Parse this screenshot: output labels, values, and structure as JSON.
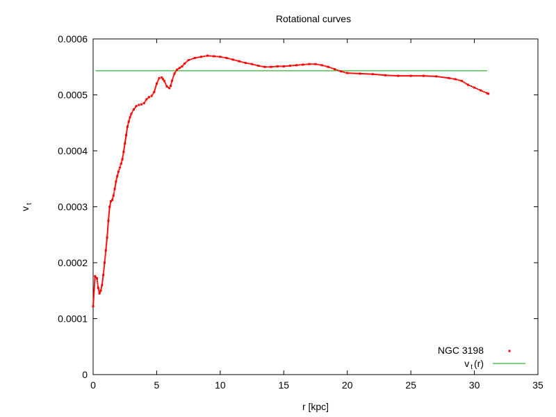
{
  "chart_data": {
    "type": "scatter",
    "title": "Rotational curves",
    "xlabel": "r [kpc]",
    "ylabel": {
      "main": "v",
      "sub": "t"
    },
    "xlim": [
      0,
      35
    ],
    "ylim": [
      0,
      0.0006
    ],
    "x_ticks": [
      0,
      5,
      10,
      15,
      20,
      25,
      30,
      35
    ],
    "x_tick_labels": [
      "0",
      "5",
      "10",
      "15",
      "20",
      "25",
      "30",
      "35"
    ],
    "y_ticks": [
      0,
      0.0001,
      0.0002,
      0.0003,
      0.0004,
      0.0005,
      0.0006
    ],
    "y_tick_labels": [
      "0",
      "0.0001",
      "0.0002",
      "0.0003",
      "0.0004",
      "0.0005",
      "0.0006"
    ],
    "grid": false,
    "legend_position": "bottom-right",
    "series": [
      {
        "name": "NGC 3198",
        "style": "points",
        "color": "#ff0000",
        "x": [
          0,
          0.15,
          0.3,
          0.4,
          0.5,
          0.6,
          0.7,
          0.8,
          0.9,
          1.0,
          1.1,
          1.2,
          1.3,
          1.4,
          1.5,
          1.6,
          1.7,
          1.8,
          1.9,
          2.0,
          2.1,
          2.2,
          2.3,
          2.4,
          2.5,
          2.6,
          2.7,
          2.8,
          2.9,
          3.0,
          3.2,
          3.4,
          3.6,
          3.8,
          4.0,
          4.2,
          4.4,
          4.6,
          4.8,
          5.0,
          5.2,
          5.4,
          5.5,
          5.6,
          5.8,
          6.0,
          6.1,
          6.2,
          6.4,
          6.6,
          6.8,
          7.0,
          7.2,
          7.5,
          8.0,
          8.5,
          9.0,
          9.5,
          10.0,
          10.5,
          11.0,
          11.5,
          12.0,
          12.5,
          13.0,
          13.5,
          14.0,
          14.5,
          15.0,
          15.5,
          16.0,
          16.5,
          17.0,
          17.5,
          18.0,
          18.5,
          19.0,
          19.5,
          20.0,
          21.0,
          22.0,
          23.0,
          24.0,
          25.0,
          26.0,
          27.0,
          28.0,
          28.5,
          29.0,
          29.5,
          30.0,
          30.5,
          31.0,
          31.1
        ],
        "y": [
          0.000122,
          0.000176,
          0.000172,
          0.000155,
          0.000145,
          0.00015,
          0.00016,
          0.000178,
          0.0002,
          0.000222,
          0.000245,
          0.000275,
          0.0003,
          0.00031,
          0.000312,
          0.00032,
          0.000332,
          0.000345,
          0.000355,
          0.000363,
          0.00037,
          0.000377,
          0.000385,
          0.000398,
          0.000413,
          0.000428,
          0.000443,
          0.000452,
          0.00046,
          0.000466,
          0.000474,
          0.00048,
          0.000482,
          0.000483,
          0.000485,
          0.000492,
          0.000496,
          0.000498,
          0.000505,
          0.00052,
          0.00053,
          0.000531,
          0.000528,
          0.000525,
          0.000515,
          0.000512,
          0.000516,
          0.000525,
          0.000538,
          0.000545,
          0.000548,
          0.000551,
          0.000556,
          0.000562,
          0.000566,
          0.000568,
          0.00057,
          0.000569,
          0.000568,
          0.000566,
          0.000563,
          0.00056,
          0.000557,
          0.000555,
          0.000552,
          0.00055,
          0.00055,
          0.000551,
          0.000551,
          0.000552,
          0.000553,
          0.000554,
          0.000555,
          0.000555,
          0.000553,
          0.00055,
          0.000546,
          0.000542,
          0.000539,
          0.000538,
          0.000537,
          0.000535,
          0.000534,
          0.000534,
          0.000534,
          0.000533,
          0.00053,
          0.000528,
          0.000525,
          0.000518,
          0.000513,
          0.000508,
          0.000503,
          0.000502
        ]
      },
      {
        "name": {
          "main": "v",
          "sub": "t",
          "suffix": "(r)"
        },
        "style": "line",
        "color": "#00a000",
        "x": [
          0.2,
          31.0
        ],
        "y": [
          0.000543,
          0.000543
        ]
      }
    ]
  }
}
